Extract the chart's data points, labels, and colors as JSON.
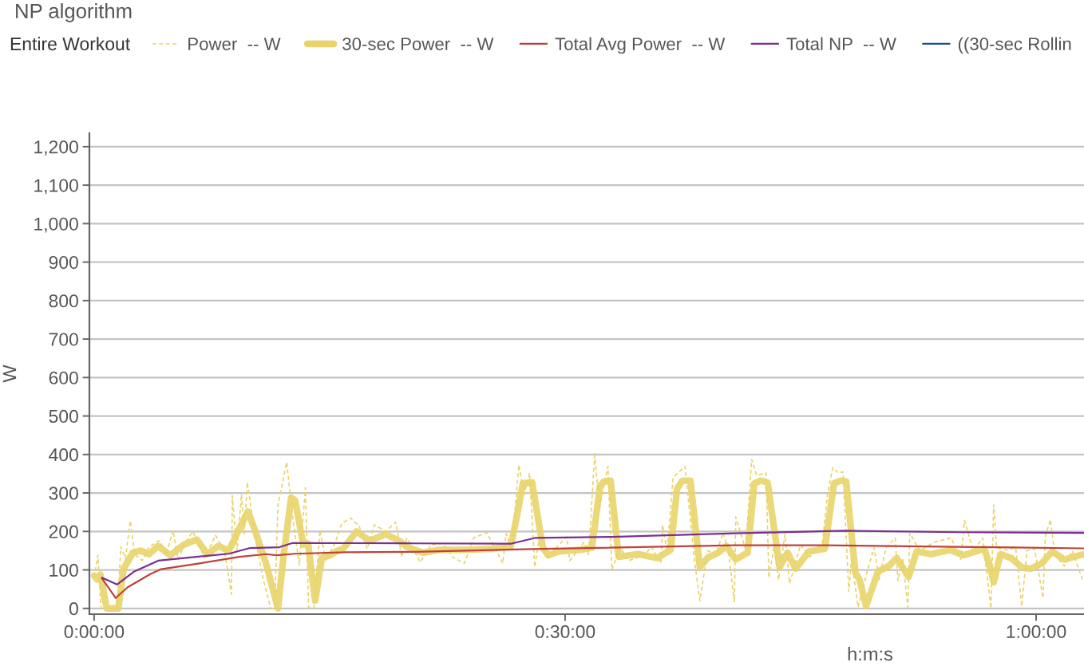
{
  "chart_data": {
    "type": "line",
    "title": "NP algorithm",
    "legend_title": "Entire Workout",
    "xlabel": "h:m:s",
    "ylabel": "W",
    "xlim": [
      -0.3,
      63.05
    ],
    "xticks": [
      {
        "value": 0,
        "label": "0:00:00"
      },
      {
        "value": 30,
        "label": "0:30:00"
      },
      {
        "value": 60,
        "label": "1:00:00"
      }
    ],
    "ylim": [
      -15,
      1235
    ],
    "yticks": [
      0,
      100,
      200,
      300,
      400,
      500,
      600,
      700,
      800,
      900,
      {
        "value": 1000,
        "label": "1,000"
      },
      {
        "value": 1100,
        "label": "1,100"
      },
      {
        "value": 1200,
        "label": "1,200"
      }
    ],
    "grid": "y",
    "legend": "top",
    "series": [
      {
        "name": "Power  -- W",
        "color": "#e8d46a",
        "line_style": "dashed",
        "x": [
          0,
          0.24,
          0.44,
          1.0,
          1.5,
          1.7,
          2.0,
          2.3,
          2.6,
          3.07,
          3.5,
          4.17,
          4.6,
          5.02,
          5.35,
          5.8,
          6.29,
          7.05,
          7.73,
          8.3,
          8.75,
          8.8,
          9.1,
          9.39,
          9.56,
          9.76,
          10.27,
          10.78,
          11.25,
          11.5,
          11.71,
          12.27,
          12.6,
          13.07,
          13.46,
          13.66,
          14.0,
          14.39,
          14.75,
          15.34,
          15.78,
          16.34,
          16.88,
          17.39,
          17.86,
          18.58,
          19.22,
          19.59,
          19.93,
          20.78,
          21.46,
          22.22,
          22.8,
          23.58,
          24.17,
          25.02,
          26.03,
          26.24,
          26.6,
          27.05,
          27.4,
          27.73,
          28.07,
          28.3,
          28.9,
          29.5,
          30.1,
          30.3,
          31.2,
          31.5,
          31.88,
          32.2,
          32.73,
          32.98,
          33.5,
          34.04,
          35.05,
          35.5,
          36.1,
          36.2,
          36.5,
          36.88,
          37.64,
          38.24,
          38.58,
          39.08,
          39.6,
          40.07,
          40.4,
          40.78,
          40.87,
          41.5,
          41.88,
          42.2,
          42.8,
          42.98,
          43.3,
          43.6,
          44.0,
          44.3,
          45.0,
          45.6,
          46.4,
          46.71,
          47.05,
          47.4,
          47.7,
          48.07,
          48.24,
          48.66,
          49.24,
          49.68,
          50.0,
          50.44,
          51.03,
          51.2,
          51.5,
          51.83,
          51.95,
          52.6,
          53.5,
          54.59,
          55.2,
          55.44,
          56.0,
          56.6,
          57.12,
          57.3,
          57.48,
          58.1,
          58.7,
          59.08,
          59.42,
          59.9,
          60.44,
          60.58,
          60.91,
          61.2,
          61.8,
          62.3,
          62.95
        ],
        "values": [
          80,
          138,
          0,
          0,
          0,
          160,
          130,
          228,
          140,
          124,
          160,
          176,
          140,
          203,
          127,
          170,
          200,
          131,
          190,
          150,
          37,
          293,
          150,
          297,
          193,
          328,
          180,
          75,
          0,
          0,
          269,
          380,
          250,
          112,
          314,
          3,
          0,
          203,
          124,
          170,
          221,
          235,
          214,
          155,
          217,
          200,
          224,
          134,
          183,
          120,
          165,
          169,
          134,
          117,
          183,
          197,
          117,
          195,
          150,
          373,
          297,
          352,
          107,
          170,
          131,
          160,
          186,
          124,
          172,
          140,
          397,
          264,
          369,
          100,
          158,
          124,
          138,
          160,
          117,
          217,
          150,
          341,
          369,
          124,
          20,
          150,
          140,
          197,
          150,
          17,
          238,
          152,
          387,
          346,
          352,
          79,
          160,
          75,
          193,
          65,
          165,
          134,
          172,
          297,
          366,
          352,
          355,
          44,
          131,
          3,
          96,
          158,
          75,
          158,
          183,
          72,
          130,
          3,
          196,
          150,
          172,
          183,
          127,
          228,
          150,
          183,
          0,
          269,
          158,
          152,
          158,
          5,
          150,
          155,
          27,
          186,
          231,
          138,
          110,
          150,
          75
        ]
      },
      {
        "name": "30-sec Power  -- W",
        "color": "#e8d46a",
        "x": [
          0,
          0.2,
          0.4,
          0.8,
          1.54,
          1.88,
          2.47,
          2.98,
          3.49,
          4.08,
          4.85,
          5.69,
          6.54,
          7.22,
          7.9,
          8.58,
          9.25,
          9.8,
          10.27,
          10.95,
          11.71,
          12.05,
          12.55,
          12.81,
          13.32,
          13.63,
          14.08,
          14.5,
          15.02,
          15.52,
          15.86,
          16.71,
          17.56,
          18.58,
          19.42,
          19.93,
          20.95,
          21.97,
          23.66,
          25.36,
          26.54,
          26.97,
          27.31,
          27.9,
          28.58,
          28.92,
          29.6,
          30.95,
          31.71,
          32.22,
          32.47,
          32.9,
          33.41,
          34.68,
          35.86,
          36.72,
          37.13,
          37.47,
          37.98,
          38.58,
          39.08,
          39.76,
          40.27,
          40.87,
          41.63,
          42.05,
          42.47,
          42.9,
          43.66,
          44.17,
          44.68,
          45.53,
          46.54,
          47.13,
          47.56,
          47.9,
          48.49,
          48.75,
          49.17,
          49.93,
          50.61,
          51.12,
          51.88,
          52.39,
          53.32,
          54.51,
          55.36,
          56.71,
          57.05,
          57.3,
          57.73,
          58.41,
          59.08,
          59.67,
          60.36,
          61.03,
          61.8,
          63.05
        ],
        "values": [
          85,
          75,
          88,
          0,
          0,
          103,
          145,
          150,
          141,
          162,
          138,
          165,
          179,
          141,
          162,
          150,
          207,
          252,
          200,
          117,
          0,
          131,
          288,
          280,
          166,
          168,
          20,
          131,
          138,
          150,
          155,
          200,
          176,
          193,
          176,
          160,
          145,
          152,
          152,
          155,
          162,
          248,
          325,
          327,
          158,
          138,
          148,
          152,
          158,
          318,
          330,
          332,
          134,
          141,
          131,
          152,
          311,
          332,
          332,
          107,
          131,
          145,
          162,
          127,
          145,
          325,
          332,
          327,
          107,
          145,
          103,
          148,
          155,
          325,
          332,
          330,
          93,
          75,
          6,
          96,
          110,
          131,
          82,
          148,
          141,
          152,
          138,
          155,
          110,
          68,
          141,
          131,
          107,
          103,
          117,
          148,
          127,
          141
        ]
      },
      {
        "name": "Total Avg Power  -- W",
        "color": "#c0413b",
        "x": [
          0.5,
          1.37,
          2.14,
          3.58,
          4.26,
          6.71,
          9.25,
          10.95,
          11.63,
          12.81,
          16.03,
          20.44,
          27.9,
          40.78,
          46.54,
          55.0,
          63.05
        ],
        "values": [
          78,
          27,
          55,
          89,
          102,
          117,
          134,
          141,
          138,
          142,
          146,
          147,
          154,
          164,
          164,
          160,
          156
        ]
      },
      {
        "name": "Total NP  -- W",
        "color": "#7b2f8e",
        "x": [
          0.5,
          1.46,
          2.56,
          4.08,
          7.05,
          8.58,
          9.93,
          11.8,
          12.64,
          20.44,
          26.54,
          28.07,
          32.98,
          40.78,
          47.73,
          55.02,
          63.05
        ],
        "values": [
          80,
          62,
          96,
          124,
          136,
          142,
          157,
          159,
          170,
          169,
          168,
          183,
          186,
          195,
          202,
          198,
          196
        ]
      },
      {
        "name": "((30-sec Rollin",
        "color": "#1f4e99"
      }
    ]
  }
}
